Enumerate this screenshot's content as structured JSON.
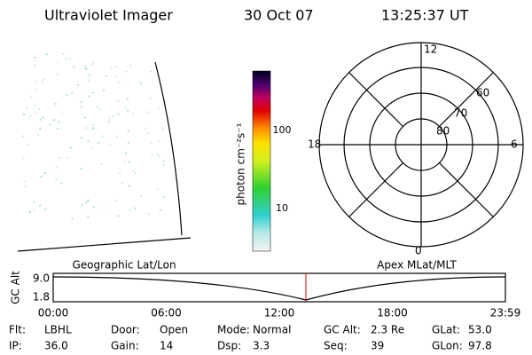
{
  "header": {
    "instrument": "Ultraviolet Imager",
    "date": "30 Oct 07",
    "time": "13:25:37 UT"
  },
  "colorbar": {
    "label": "photon cm⁻²s⁻¹",
    "ticks": [
      "100",
      "10"
    ]
  },
  "polar": {
    "hours": [
      "12",
      "18",
      "6",
      "0"
    ],
    "latitudes": [
      "60",
      "70",
      "80"
    ]
  },
  "altitude_panel": {
    "left_title": "Geographic Lat/Lon",
    "right_title": "Apex MLat/MLT",
    "y_label": "GC Alt",
    "y_labels": [
      "9.0",
      "1.8"
    ],
    "time_labels": [
      "00:00",
      "06:00",
      "12:00",
      "18:00",
      "23:59"
    ]
  },
  "info": [
    [
      {
        "label": "Flt:",
        "value": "LBHL"
      },
      {
        "label": "Door:",
        "value": "Open"
      },
      {
        "label": "Mode:",
        "value": "Normal"
      },
      {
        "label": "GC Alt:",
        "value": "2.3 Re"
      },
      {
        "label": "GLat:",
        "value": "53.0"
      }
    ],
    [
      {
        "label": "IP:",
        "value": "36.0"
      },
      {
        "label": "Gain:",
        "value": "14"
      },
      {
        "label": "Dsp:",
        "value": "3.3"
      },
      {
        "label": "Seq:",
        "value": "39"
      },
      {
        "label": "GLon:",
        "value": "97.8"
      }
    ]
  ]
}
